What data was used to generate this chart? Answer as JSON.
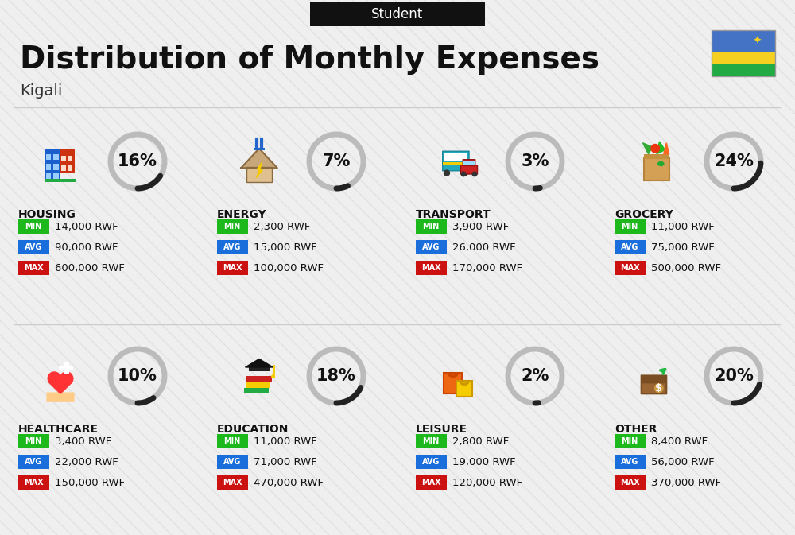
{
  "title": "Distribution of Monthly Expenses",
  "subtitle": "Student",
  "city": "Kigali",
  "bg_color": "#efefef",
  "header_bg": "#111111",
  "header_text_color": "#ffffff",
  "categories": [
    {
      "name": "HOUSING",
      "pct": 16,
      "min": "14,000 RWF",
      "avg": "90,000 RWF",
      "max": "600,000 RWF",
      "row": 0,
      "col": 0
    },
    {
      "name": "ENERGY",
      "pct": 7,
      "min": "2,300 RWF",
      "avg": "15,000 RWF",
      "max": "100,000 RWF",
      "row": 0,
      "col": 1
    },
    {
      "name": "TRANSPORT",
      "pct": 3,
      "min": "3,900 RWF",
      "avg": "26,000 RWF",
      "max": "170,000 RWF",
      "row": 0,
      "col": 2
    },
    {
      "name": "GROCERY",
      "pct": 24,
      "min": "11,000 RWF",
      "avg": "75,000 RWF",
      "max": "500,000 RWF",
      "row": 0,
      "col": 3
    },
    {
      "name": "HEALTHCARE",
      "pct": 10,
      "min": "3,400 RWF",
      "avg": "22,000 RWF",
      "max": "150,000 RWF",
      "row": 1,
      "col": 0
    },
    {
      "name": "EDUCATION",
      "pct": 18,
      "min": "11,000 RWF",
      "avg": "71,000 RWF",
      "max": "470,000 RWF",
      "row": 1,
      "col": 1
    },
    {
      "name": "LEISURE",
      "pct": 2,
      "min": "2,800 RWF",
      "avg": "19,000 RWF",
      "max": "120,000 RWF",
      "row": 1,
      "col": 2
    },
    {
      "name": "OTHER",
      "pct": 20,
      "min": "8,400 RWF",
      "avg": "56,000 RWF",
      "max": "370,000 RWF",
      "row": 1,
      "col": 3
    }
  ],
  "min_color": "#1cb81c",
  "avg_color": "#1a6edb",
  "max_color": "#cc1111",
  "ring_color_filled": "#222222",
  "ring_color_empty": "#bbbbbb",
  "ring_lw": 5,
  "pct_fontsize": 15,
  "cat_fontsize": 10,
  "val_fontsize": 9.5,
  "badge_fontsize": 7,
  "flag_blue": "#4472c4",
  "flag_yellow": "#f5d020",
  "flag_green": "#22aa44"
}
